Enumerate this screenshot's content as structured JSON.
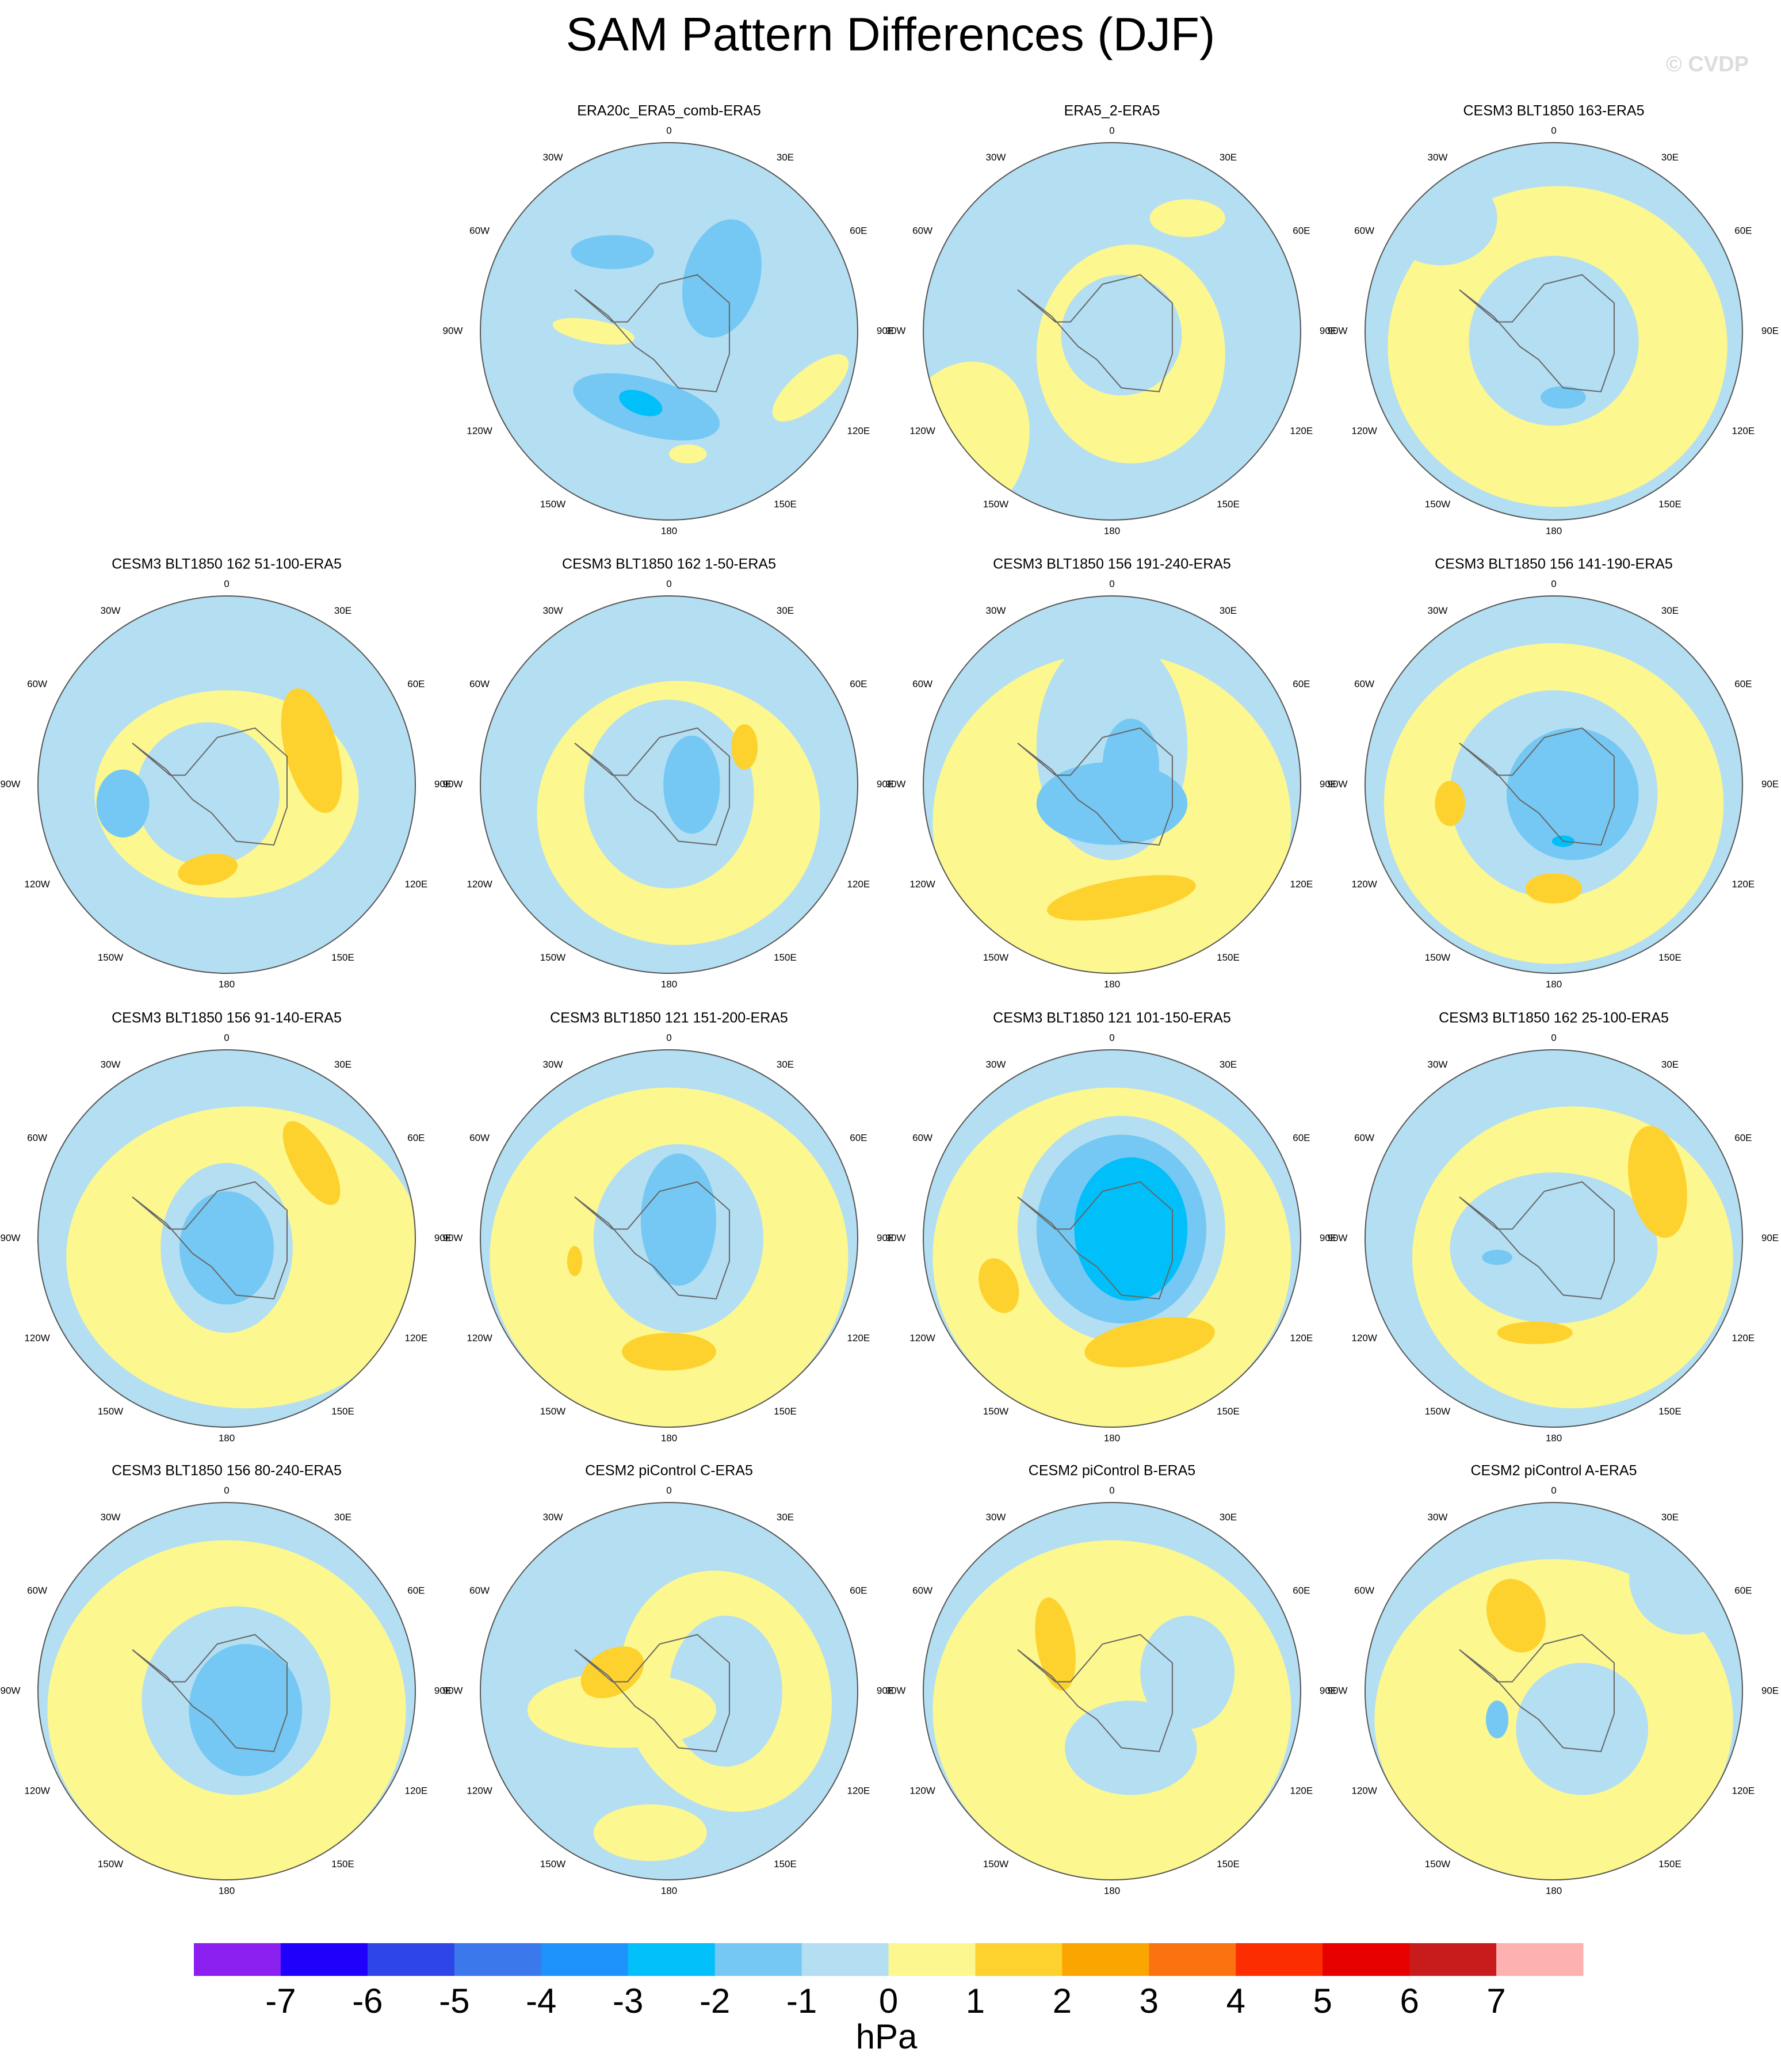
{
  "title": "SAM Pattern Differences (DJF)",
  "watermark": "© CVDP",
  "longitude_labels": [
    "0",
    "30E",
    "60E",
    "90E",
    "120E",
    "150E",
    "180",
    "150W",
    "120W",
    "90W",
    "60W",
    "30W"
  ],
  "panels": [
    {
      "title": "ERA20c_ERA5_comb-ERA5"
    },
    {
      "title": "ERA5_2-ERA5"
    },
    {
      "title": "CESM3 BLT1850 163-ERA5"
    },
    {
      "title": "CESM3 BLT1850 162 51-100-ERA5"
    },
    {
      "title": "CESM3 BLT1850 162 1-50-ERA5"
    },
    {
      "title": "CESM3 BLT1850 156 191-240-ERA5"
    },
    {
      "title": "CESM3 BLT1850 156 141-190-ERA5"
    },
    {
      "title": "CESM3 BLT1850 156 91-140-ERA5"
    },
    {
      "title": "CESM3 BLT1850 121 151-200-ERA5"
    },
    {
      "title": "CESM3 BLT1850 121 101-150-ERA5"
    },
    {
      "title": "CESM3 BLT1850 162 25-100-ERA5"
    },
    {
      "title": "CESM3 BLT1850 156 80-240-ERA5"
    },
    {
      "title": "CESM2 piControl C-ERA5"
    },
    {
      "title": "CESM2 piControl B-ERA5"
    },
    {
      "title": "CESM2 piControl A-ERA5"
    }
  ],
  "colorbar": {
    "colors": [
      "#8a1ff0",
      "#1f00fb",
      "#2e45e8",
      "#3b78ec",
      "#1e92fb",
      "#00bff9",
      "#74c8f3",
      "#b4def2",
      "#fdf78f",
      "#fdd22e",
      "#fba500",
      "#fb7210",
      "#fc2d00",
      "#e60000",
      "#c81c1c",
      "#feb1b1"
    ],
    "levels": [
      -7,
      -6,
      -5,
      -4,
      -3,
      -2,
      -1,
      0,
      1,
      2,
      3,
      4,
      5,
      6,
      7
    ],
    "units": "hPa"
  }
}
